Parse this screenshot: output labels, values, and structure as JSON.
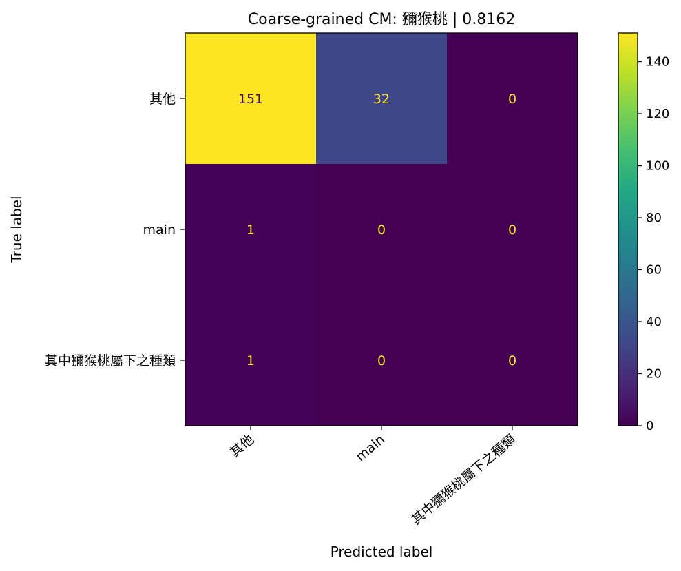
{
  "chart_data": {
    "type": "heatmap",
    "title": "Coarse-grained CM: 獼猴桃 | 0.8162",
    "xlabel": "Predicted label",
    "ylabel": "True label",
    "x_categories": [
      "其他",
      "main",
      "其中獼猴桃屬下之種類"
    ],
    "y_categories": [
      "其他",
      "main",
      "其中獼猴桃屬下之種類"
    ],
    "matrix": [
      [
        151,
        32,
        0
      ],
      [
        1,
        0,
        0
      ],
      [
        1,
        0,
        0
      ]
    ],
    "colormap": "viridis",
    "colorbar": {
      "range": [
        0,
        151
      ],
      "ticks": [
        "0",
        "20",
        "40",
        "60",
        "80",
        "100",
        "120",
        "140"
      ]
    },
    "text_colors": {
      "dark_cell": "#fde725",
      "light_cell": "#440154"
    },
    "grid": false,
    "legend": "none"
  }
}
